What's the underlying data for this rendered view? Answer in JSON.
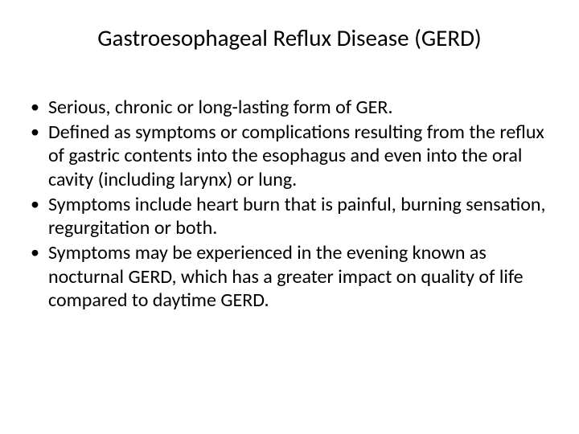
{
  "slide": {
    "title": "Gastroesophageal Reflux Disease (GERD)",
    "bullets": [
      "Serious, chronic or long-lasting form of GER.",
      "Defined as symptoms or complications resulting from the reflux of gastric contents into the esophagus and even into the oral cavity (including larynx) or lung.",
      "Symptoms include heart burn that is painful, burning sensation, regurgitation or both.",
      "Symptoms may be experienced in the evening known as nocturnal GERD, which has a greater impact on quality of life compared to daytime GERD."
    ]
  },
  "style": {
    "background_color": "#ffffff",
    "text_color": "#000000",
    "title_fontsize": 29,
    "body_fontsize": 24,
    "font_family": "Calibri"
  }
}
